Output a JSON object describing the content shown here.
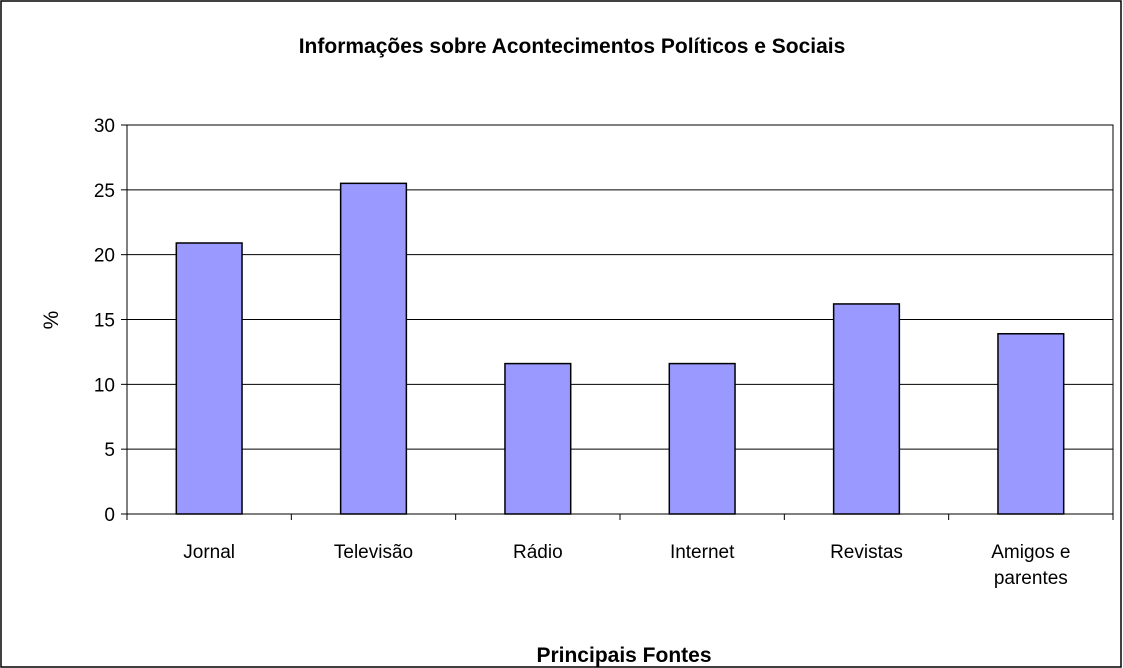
{
  "chart_data": {
    "type": "bar",
    "title": "Informações sobre Acontecimentos Políticos e Sociais",
    "xlabel": "Principais Fontes",
    "ylabel": "%",
    "categories": [
      [
        "Jornal"
      ],
      [
        "Televisão"
      ],
      [
        "Rádio"
      ],
      [
        "Internet"
      ],
      [
        "Revistas"
      ],
      [
        "Amigos e",
        "parentes"
      ]
    ],
    "values": [
      20.9,
      25.5,
      11.6,
      11.6,
      16.2,
      13.9
    ],
    "ylim": [
      0,
      30
    ],
    "yticks": [
      0,
      5,
      10,
      15,
      20,
      25,
      30
    ],
    "grid": true,
    "legend": "none",
    "colors": {
      "bar_fill": "#9999ff",
      "bar_stroke": "#000000",
      "grid": "#000000",
      "axis": "#000000",
      "frame": "#000000"
    }
  }
}
